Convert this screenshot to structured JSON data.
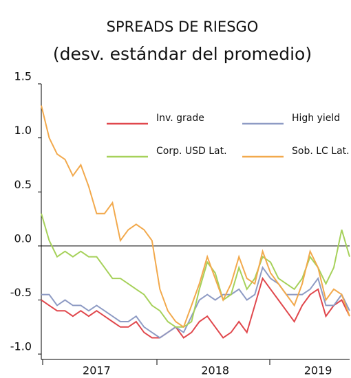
{
  "chart_data": {
    "type": "line",
    "title": "SPREADS DE RIESGO",
    "subtitle": "(desv. estándar del promedio)",
    "categories": [
      null,
      null,
      null,
      null,
      null,
      null,
      null,
      "2017",
      null,
      null,
      null,
      null,
      null,
      null,
      null,
      null,
      null,
      null,
      null,
      null,
      null,
      null,
      "2018",
      null,
      null,
      null,
      null,
      null,
      null,
      null,
      null,
      null,
      null,
      null,
      null,
      "2019",
      null,
      null,
      null,
      null
    ],
    "series": [
      {
        "name": "Inv. grade",
        "color": "#e0474c",
        "values": [
          -0.5,
          -0.55,
          -0.6,
          -0.6,
          -0.65,
          -0.6,
          -0.65,
          -0.6,
          -0.65,
          -0.7,
          -0.75,
          -0.75,
          -0.7,
          -0.8,
          -0.85,
          -0.85,
          -0.8,
          -0.75,
          -0.85,
          -0.8,
          -0.7,
          -0.65,
          -0.75,
          -0.85,
          -0.8,
          -0.7,
          -0.8,
          -0.55,
          -0.3,
          -0.4,
          -0.5,
          -0.6,
          -0.7,
          -0.55,
          -0.45,
          -0.4,
          -0.65,
          -0.55,
          -0.5,
          -0.65
        ]
      },
      {
        "name": "High yield",
        "color": "#8e9bc4",
        "values": [
          -0.45,
          -0.45,
          -0.55,
          -0.5,
          -0.55,
          -0.55,
          -0.6,
          -0.55,
          -0.6,
          -0.65,
          -0.7,
          -0.7,
          -0.65,
          -0.75,
          -0.8,
          -0.85,
          -0.8,
          -0.75,
          -0.8,
          -0.65,
          -0.5,
          -0.45,
          -0.5,
          -0.45,
          -0.45,
          -0.4,
          -0.5,
          -0.45,
          -0.2,
          -0.3,
          -0.35,
          -0.45,
          -0.45,
          -0.45,
          -0.4,
          -0.3,
          -0.55,
          -0.55,
          -0.45,
          -0.6
        ]
      },
      {
        "name": "Corp. USD Lat.",
        "color": "#a6d15a",
        "values": [
          0.3,
          0.05,
          -0.1,
          -0.05,
          -0.1,
          -0.05,
          -0.1,
          -0.1,
          -0.2,
          -0.3,
          -0.3,
          -0.35,
          -0.4,
          -0.45,
          -0.55,
          -0.6,
          -0.7,
          -0.75,
          -0.75,
          -0.7,
          -0.4,
          -0.15,
          -0.25,
          -0.5,
          -0.45,
          -0.2,
          -0.4,
          -0.3,
          -0.1,
          -0.15,
          -0.3,
          -0.35,
          -0.4,
          -0.3,
          -0.1,
          -0.2,
          -0.35,
          -0.2,
          0.15,
          -0.1
        ]
      },
      {
        "name": "Sob. LC Lat.",
        "color": "#f2a94c",
        "values": [
          1.3,
          1.0,
          0.85,
          0.8,
          0.65,
          0.75,
          0.55,
          0.3,
          0.3,
          0.4,
          0.05,
          0.15,
          0.2,
          0.15,
          0.05,
          -0.4,
          -0.6,
          -0.7,
          -0.75,
          -0.55,
          -0.35,
          -0.1,
          -0.3,
          -0.5,
          -0.35,
          -0.1,
          -0.3,
          -0.35,
          -0.05,
          -0.25,
          -0.35,
          -0.45,
          -0.55,
          -0.35,
          -0.05,
          -0.2,
          -0.5,
          -0.4,
          -0.45,
          -0.65
        ]
      }
    ],
    "ylim": [
      -1.05,
      1.5
    ],
    "yticks": [
      1.5,
      {
        "value": 1,
        "label": "1.0"
      },
      0.5,
      {
        "value": 0,
        "label": "0.0"
      },
      -0.5,
      {
        "value": -1,
        "label": "-1.0"
      }
    ],
    "zero_line": true
  }
}
